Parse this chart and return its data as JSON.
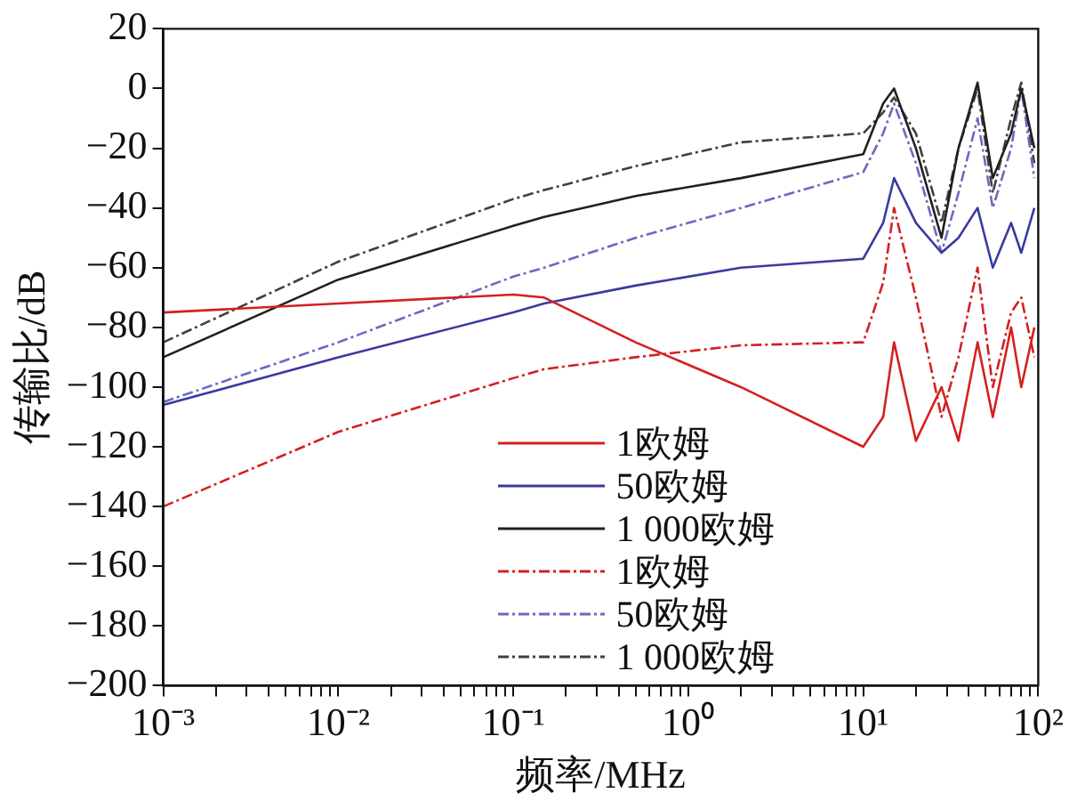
{
  "chart_data": {
    "type": "line",
    "xlabel": "频率/MHz",
    "ylabel": "传输比/dB",
    "log": "x",
    "grid": false,
    "legend": "bottom",
    "marker": "none",
    "x": [
      0.001,
      0.01,
      0.1,
      0.15,
      0.5,
      2,
      10,
      13,
      15,
      20,
      28,
      35,
      45,
      55,
      70,
      80,
      95
    ],
    "series": [
      {
        "name": "1欧姆",
        "color": "#d42020",
        "line_style": "solid",
        "values": [
          -75,
          -72,
          -69,
          -70,
          -85,
          -100,
          -120,
          -110,
          -85,
          -118,
          -100,
          -118,
          -85,
          -110,
          -80,
          -100,
          -80
        ]
      },
      {
        "name": "50欧姆",
        "color": "#3a3aa0",
        "line_style": "solid",
        "values": [
          -106,
          -90,
          -75,
          -72,
          -66,
          -60,
          -57,
          -45,
          -30,
          -45,
          -55,
          -50,
          -40,
          -60,
          -45,
          -55,
          -40
        ]
      },
      {
        "name": "1 000欧姆",
        "color": "#202020",
        "line_style": "solid",
        "values": [
          -90,
          -64,
          -46,
          -43,
          -36,
          -30,
          -22,
          -5,
          0,
          -20,
          -50,
          -20,
          2,
          -30,
          -15,
          0,
          -20
        ]
      },
      {
        "name": "1欧姆",
        "color": "#d42020",
        "line_style": "dashed",
        "values": [
          -140,
          -115,
          -97,
          -94,
          -90,
          -86,
          -85,
          -65,
          -40,
          -70,
          -110,
          -90,
          -60,
          -100,
          -75,
          -70,
          -90
        ]
      },
      {
        "name": "50欧姆",
        "color": "#6a6ac0",
        "line_style": "dashed",
        "values": [
          -105,
          -85,
          -63,
          -60,
          -50,
          -40,
          -28,
          -15,
          -5,
          -25,
          -55,
          -35,
          -10,
          -40,
          -20,
          0,
          -30
        ]
      },
      {
        "name": "1 000欧姆",
        "color": "#404040",
        "line_style": "dashed",
        "values": [
          -85,
          -58,
          -37,
          -34,
          -26,
          -18,
          -15,
          -8,
          -3,
          -15,
          -45,
          -20,
          0,
          -35,
          -10,
          2,
          -25
        ]
      }
    ],
    "xlim": [
      0.001,
      100
    ],
    "ylim": [
      -200,
      20
    ],
    "xticks": [
      {
        "value": 0.001,
        "label": "10⁻³"
      },
      {
        "value": 0.002,
        "label": null
      },
      {
        "value": 0.003,
        "label": null
      },
      {
        "value": 0.004,
        "label": null
      },
      {
        "value": 0.005,
        "label": null
      },
      {
        "value": 0.006,
        "label": null
      },
      {
        "value": 0.007,
        "label": null
      },
      {
        "value": 0.008,
        "label": null
      },
      {
        "value": 0.009,
        "label": null
      },
      {
        "value": 0.01,
        "label": "10⁻²"
      },
      {
        "value": 0.02,
        "label": null
      },
      {
        "value": 0.03,
        "label": null
      },
      {
        "value": 0.04,
        "label": null
      },
      {
        "value": 0.05,
        "label": null
      },
      {
        "value": 0.06,
        "label": null
      },
      {
        "value": 0.07,
        "label": null
      },
      {
        "value": 0.08,
        "label": null
      },
      {
        "value": 0.09,
        "label": null
      },
      {
        "value": 0.1,
        "label": "10⁻¹"
      },
      {
        "value": 0.2,
        "label": null
      },
      {
        "value": 0.3,
        "label": null
      },
      {
        "value": 0.4,
        "label": null
      },
      {
        "value": 0.5,
        "label": null
      },
      {
        "value": 0.6,
        "label": null
      },
      {
        "value": 0.7,
        "label": null
      },
      {
        "value": 0.8,
        "label": null
      },
      {
        "value": 0.9,
        "label": null
      },
      {
        "value": 1,
        "label": "10⁰"
      },
      {
        "value": 2,
        "label": null
      },
      {
        "value": 3,
        "label": null
      },
      {
        "value": 4,
        "label": null
      },
      {
        "value": 5,
        "label": null
      },
      {
        "value": 6,
        "label": null
      },
      {
        "value": 7,
        "label": null
      },
      {
        "value": 8,
        "label": null
      },
      {
        "value": 9,
        "label": null
      },
      {
        "value": 10,
        "label": "10¹"
      },
      {
        "value": 20,
        "label": null
      },
      {
        "value": 30,
        "label": null
      },
      {
        "value": 40,
        "label": null
      },
      {
        "value": 50,
        "label": null
      },
      {
        "value": 60,
        "label": null
      },
      {
        "value": 70,
        "label": null
      },
      {
        "value": 80,
        "label": null
      },
      {
        "value": 90,
        "label": null
      },
      {
        "value": 100,
        "label": "10²"
      }
    ],
    "yticks": [
      -200,
      -180,
      -160,
      -140,
      -120,
      -100,
      -80,
      -60,
      -40,
      -20,
      0,
      20
    ]
  }
}
